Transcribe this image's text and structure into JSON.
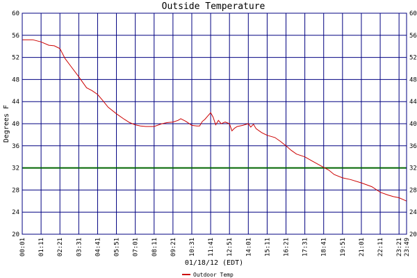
{
  "chart_data": {
    "type": "line",
    "title": "Outside Temperature",
    "xlabel": "01/18/12 (EDT)",
    "ylabel": "Degrees F",
    "ylim": [
      20,
      60
    ],
    "yticks": [
      20,
      24,
      28,
      32,
      36,
      40,
      44,
      48,
      52,
      56,
      60
    ],
    "x_tick_labels": [
      "00:01",
      "01:11",
      "02:21",
      "03:31",
      "04:41",
      "05:51",
      "07:01",
      "08:11",
      "09:21",
      "10:31",
      "11:41",
      "12:51",
      "14:01",
      "15:11",
      "16:21",
      "17:31",
      "18:41",
      "19:51",
      "21:01",
      "22:11",
      "23:21",
      "23:49"
    ],
    "grid": true,
    "legend_position": "bottom-center",
    "reference_line": {
      "value": 32,
      "color": "#006400"
    },
    "colors": {
      "grid": "#000080",
      "series": "#cc0000",
      "reference": "#006400"
    },
    "series": [
      {
        "name": "Outdoor Temp",
        "color": "#cc0000",
        "x": [
          "00:01",
          "00:40",
          "01:11",
          "01:40",
          "02:00",
          "02:21",
          "02:40",
          "03:00",
          "03:31",
          "04:00",
          "04:20",
          "04:41",
          "05:00",
          "05:20",
          "05:51",
          "06:20",
          "06:40",
          "07:01",
          "07:20",
          "07:40",
          "08:11",
          "08:40",
          "09:00",
          "09:21",
          "09:40",
          "09:50",
          "10:10",
          "10:31",
          "10:50",
          "11:00",
          "11:10",
          "11:20",
          "11:41",
          "11:50",
          "12:00",
          "12:10",
          "12:20",
          "12:35",
          "12:51",
          "13:00",
          "13:10",
          "13:20",
          "13:40",
          "14:01",
          "14:10",
          "14:20",
          "14:30",
          "14:50",
          "15:11",
          "15:40",
          "16:00",
          "16:21",
          "16:40",
          "17:00",
          "17:31",
          "18:00",
          "18:41",
          "19:00",
          "19:20",
          "19:51",
          "20:20",
          "21:01",
          "21:40",
          "22:11",
          "22:40",
          "23:00",
          "23:21",
          "23:35",
          "23:49"
        ],
        "values": [
          55.2,
          55.2,
          54.8,
          54.2,
          54.1,
          53.6,
          51.8,
          50.5,
          48.5,
          46.5,
          46.0,
          45.3,
          44.2,
          43.0,
          41.8,
          40.8,
          40.2,
          39.8,
          39.6,
          39.5,
          39.5,
          40.0,
          40.2,
          40.3,
          40.6,
          40.9,
          40.4,
          39.7,
          39.6,
          39.6,
          40.4,
          40.8,
          42.0,
          41.2,
          39.8,
          40.6,
          40.0,
          40.3,
          40.0,
          38.7,
          39.2,
          39.5,
          39.7,
          40.0,
          39.4,
          39.9,
          39.1,
          38.4,
          37.9,
          37.5,
          36.8,
          36.0,
          35.2,
          34.5,
          34.0,
          33.2,
          32.1,
          31.6,
          30.8,
          30.2,
          29.9,
          29.3,
          28.6,
          27.6,
          27.1,
          26.8,
          26.6,
          26.3,
          26.0
        ]
      }
    ]
  }
}
